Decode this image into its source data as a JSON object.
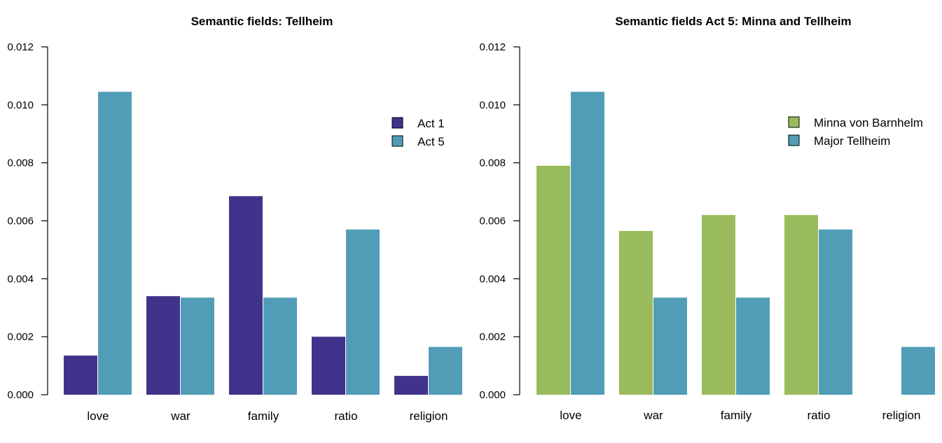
{
  "chart_data": [
    {
      "type": "bar",
      "title": "Semantic fields: Tellheim",
      "categories": [
        "love",
        "war",
        "family",
        "ratio",
        "religion"
      ],
      "ylim": [
        0,
        0.012
      ],
      "yticks": [
        "0.000",
        "0.002",
        "0.004",
        "0.006",
        "0.008",
        "0.010",
        "0.012"
      ],
      "legend_position": "top-right",
      "grid": false,
      "series": [
        {
          "name": "Act 1",
          "color": "#41338b",
          "values": [
            0.00135,
            0.0034,
            0.00685,
            0.002,
            0.00065
          ]
        },
        {
          "name": "Act 5",
          "color": "#519db8",
          "values": [
            0.01045,
            0.00335,
            0.00335,
            0.0057,
            0.00165
          ]
        }
      ]
    },
    {
      "type": "bar",
      "title": "Semantic fields Act 5: Minna and Tellheim",
      "categories": [
        "love",
        "war",
        "family",
        "ratio",
        "religion"
      ],
      "ylim": [
        0,
        0.012
      ],
      "yticks": [
        "0.000",
        "0.002",
        "0.004",
        "0.006",
        "0.008",
        "0.010",
        "0.012"
      ],
      "legend_position": "top-right",
      "grid": false,
      "series": [
        {
          "name": "Minna von Barnhelm",
          "color": "#9abb5b",
          "values": [
            0.0079,
            0.00565,
            0.0062,
            0.0062,
            0
          ]
        },
        {
          "name": "Major Tellheim",
          "color": "#519db8",
          "values": [
            0.01045,
            0.00335,
            0.00335,
            0.0057,
            0.00165
          ]
        }
      ]
    }
  ]
}
